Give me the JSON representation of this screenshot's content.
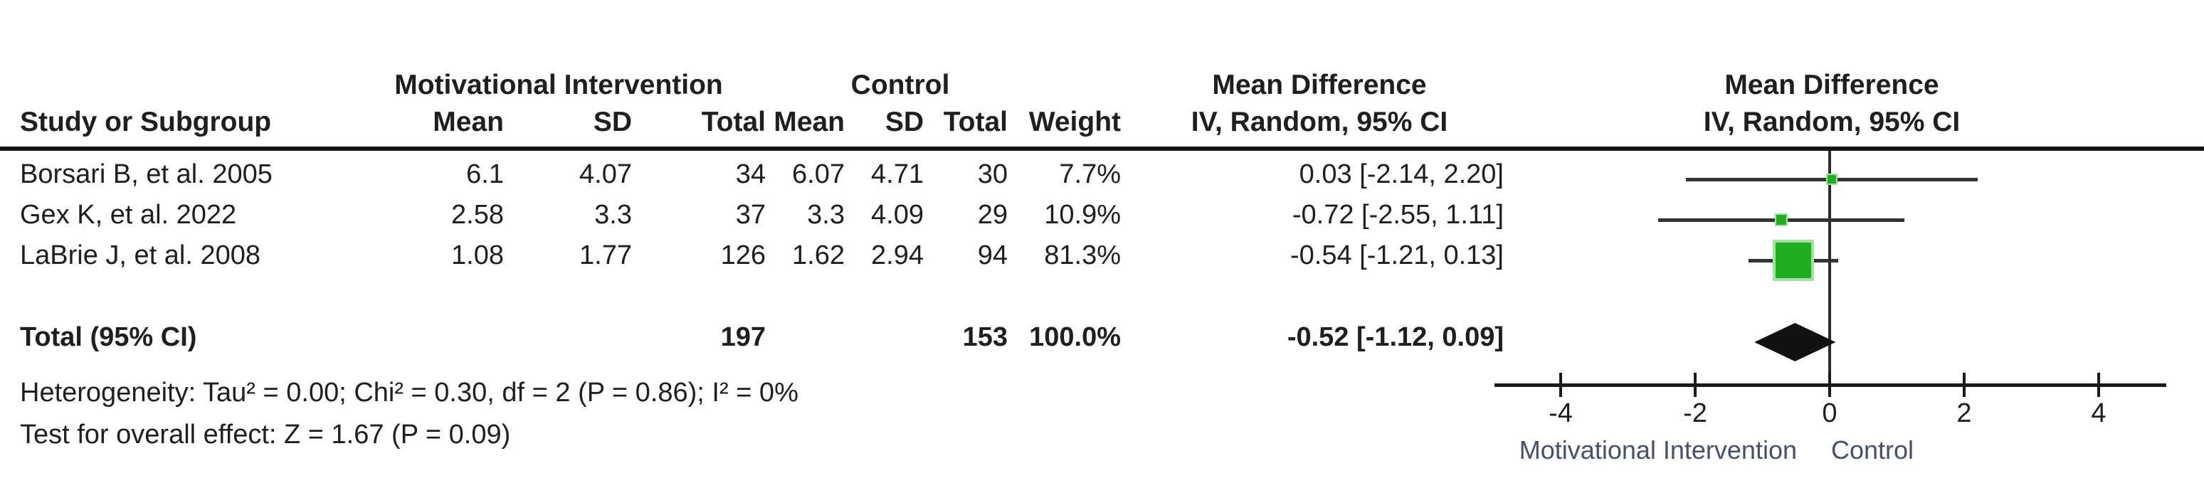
{
  "header": {
    "group_intervention": "Motivational Intervention",
    "group_control": "Control",
    "mean_difference_col": "Mean Difference",
    "mean_difference_plot": "Mean Difference",
    "study": "Study or Subgroup",
    "mean": "Mean",
    "sd": "SD",
    "total": "Total",
    "mean2": "Mean",
    "sd2": "SD",
    "total2": "Total",
    "weight": "Weight",
    "ci_method": "IV, Random, 95% CI",
    "ci_method_plot": "IV, Random, 95% CI"
  },
  "rows": [
    {
      "study": "Borsari B, et al. 2005",
      "mean": "6.1",
      "sd": "4.07",
      "total": "34",
      "c_mean": "6.07",
      "c_sd": "4.71",
      "c_total": "30",
      "weight": "7.7%",
      "ci": "0.03 [-2.14, 2.20]"
    },
    {
      "study": "Gex K, et al. 2022",
      "mean": "2.58",
      "sd": "3.3",
      "total": "37",
      "c_mean": "3.3",
      "c_sd": "4.09",
      "c_total": "29",
      "weight": "10.9%",
      "ci": "-0.72 [-2.55, 1.11]"
    },
    {
      "study": "LaBrie J, et al. 2008",
      "mean": "1.08",
      "sd": "1.77",
      "total": "126",
      "c_mean": "1.62",
      "c_sd": "2.94",
      "c_total": "94",
      "weight": "81.3%",
      "ci": "-0.54 [-1.21, 0.13]"
    }
  ],
  "total_row": {
    "label": "Total (95% CI)",
    "total": "197",
    "c_total": "153",
    "weight": "100.0%",
    "ci": "-0.52 [-1.12, 0.09]"
  },
  "footnotes": {
    "heterogeneity": "Heterogeneity: Tau² = 0.00; Chi² = 0.30, df = 2 (P = 0.86); I² = 0%",
    "overall_effect": "Test for overall effect: Z = 1.67 (P = 0.09)"
  },
  "axis_labels": {
    "left": "Motivational Intervention",
    "right": "Control"
  },
  "colors": {
    "square_fill": "#1fae1f",
    "square_border": "#9fe49f",
    "diamond": "#111111",
    "ci_line": "#333333",
    "axis": "#1a1a1a",
    "zero_line": "#2b2b2b",
    "footer_text": "#44516b"
  },
  "chart_data": {
    "type": "forest",
    "effect_measure": "Mean Difference (IV, Random, 95% CI)",
    "studies": [
      {
        "name": "Borsari B, et al. 2005",
        "md": 0.03,
        "ci_low": -2.14,
        "ci_high": 2.2,
        "weight_pct": 7.7
      },
      {
        "name": "Gex K, et al. 2022",
        "md": -0.72,
        "ci_low": -2.55,
        "ci_high": 1.11,
        "weight_pct": 10.9
      },
      {
        "name": "LaBrie J, et al. 2008",
        "md": -0.54,
        "ci_low": -1.21,
        "ci_high": 0.13,
        "weight_pct": 81.3
      }
    ],
    "pooled": {
      "md": -0.52,
      "ci_low": -1.12,
      "ci_high": 0.09
    },
    "axis": {
      "ticks": [
        -4,
        -2,
        0,
        2,
        4
      ],
      "min": -5,
      "max": 5
    },
    "favours_left": "Motivational Intervention",
    "favours_right": "Control"
  }
}
